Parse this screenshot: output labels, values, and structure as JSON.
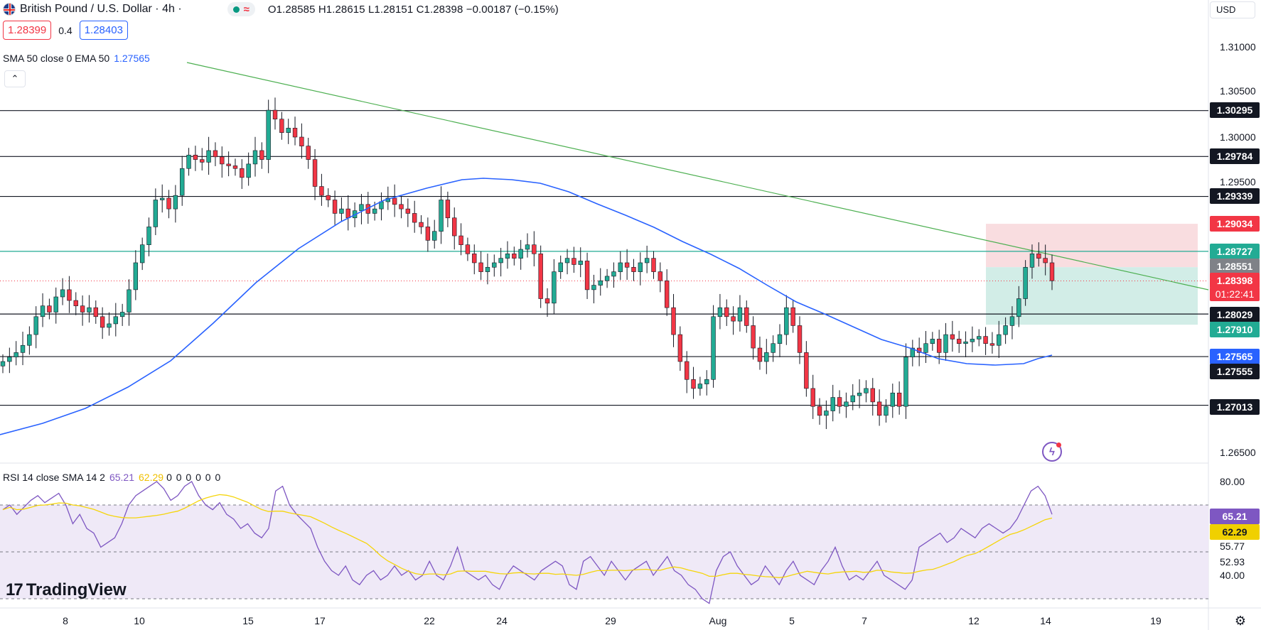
{
  "header": {
    "title": "British Pound / U.S. Dollar · 4h ·",
    "ohlc": "O1.28585 H1.28615 L1.28151 C1.28398 −0.00187 (−0.15%)",
    "sell_price": "1.28399",
    "spread": "0.4",
    "buy_price": "1.28403",
    "currency": "USD"
  },
  "indicators": {
    "ma_label": "SMA 50 close 0 EMA 50",
    "ma_value": "1.27565",
    "rsi_label": "RSI 14 close SMA 14 2",
    "rsi_value": "65.21",
    "rsi_sma_value": "62.29",
    "rsi_zeros": "0 0 0 0 0 0"
  },
  "branding": {
    "logo_text": "TradingView",
    "logo_mark": "17"
  },
  "price_axis": {
    "ticks": [
      "1.31000",
      "1.30500",
      "1.30000",
      "1.29500",
      "1.26500"
    ],
    "tags": {
      "r1": "1.30295",
      "r2": "1.29784",
      "r3": "1.29339",
      "target": "1.29034",
      "resistance_green": "1.28727",
      "entry": "1.28551",
      "last": "1.28398",
      "countdown": "01:22:41",
      "s1": "1.28029",
      "stop": "1.27910",
      "ema": "1.27565",
      "s2": "1.27555",
      "s3": "1.27013"
    }
  },
  "rsi_axis": {
    "ticks": [
      "80.00",
      "55.77",
      "52.93",
      "40.00"
    ],
    "tag_rsi": "65.21",
    "tag_sma": "62.29"
  },
  "time_axis": [
    "8",
    "10",
    "15",
    "17",
    "22",
    "24",
    "29",
    "Aug",
    "5",
    "7",
    "12",
    "14",
    "19"
  ],
  "colors": {
    "up": "#22ab94",
    "down": "#f23645",
    "ema": "#2962ff",
    "trendline": "#4caf50",
    "rsi": "#7e57c2",
    "rsi_sma": "#f5d50a"
  },
  "chart_data": {
    "type": "candlestick",
    "symbol": "British Pound / U.S. Dollar",
    "interval": "4h",
    "horizontal_levels": [
      1.30295,
      1.29784,
      1.29339,
      1.28727,
      1.28029,
      1.27555,
      1.27013
    ],
    "position": {
      "target": 1.29034,
      "entry": 1.28551,
      "stop": 1.2791
    },
    "ylim": [
      1.2635,
      1.3135
    ],
    "rsi_levels": [
      70,
      50,
      30
    ]
  }
}
